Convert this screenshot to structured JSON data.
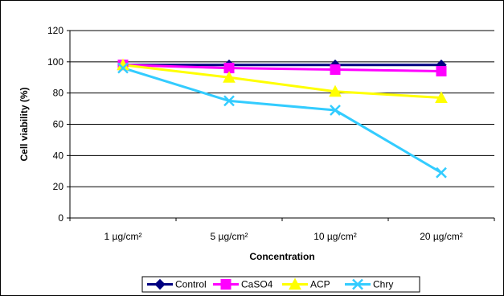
{
  "chart_data": {
    "type": "line",
    "title": "",
    "xlabel": "Concentration",
    "ylabel": "Cell viability (%)",
    "categories": [
      "1 µg/cm²",
      "5 µg/cm²",
      "10 µg/cm²",
      "20 µg/cm²"
    ],
    "ylim": [
      0,
      120
    ],
    "yticks": [
      0,
      20,
      40,
      60,
      80,
      100,
      120
    ],
    "grid": true,
    "legend_position": "bottom",
    "series": [
      {
        "name": "Control",
        "values": [
          98,
          98,
          98,
          98
        ],
        "color": "#000080",
        "marker": "diamond"
      },
      {
        "name": "CaSO4",
        "values": [
          98,
          96,
          95,
          94
        ],
        "color": "#ff00ff",
        "marker": "square"
      },
      {
        "name": "ACP",
        "values": [
          98,
          90,
          81,
          77
        ],
        "color": "#ffff00",
        "marker": "triangle"
      },
      {
        "name": "Chry",
        "values": [
          96,
          75,
          69,
          29
        ],
        "color": "#33ccff",
        "marker": "x"
      }
    ]
  }
}
